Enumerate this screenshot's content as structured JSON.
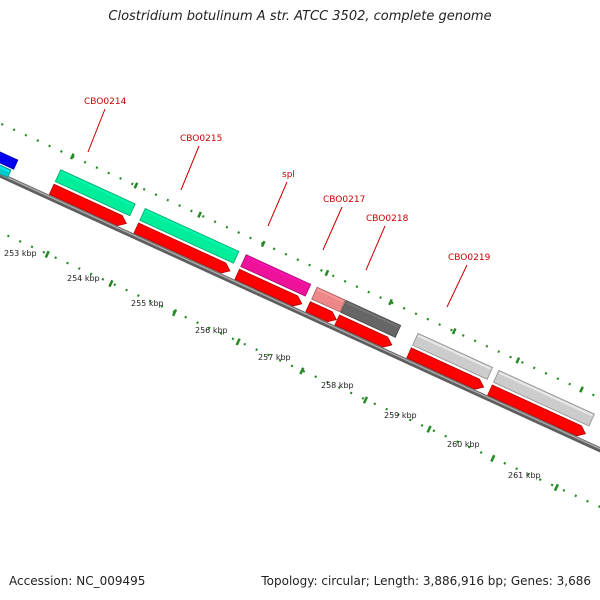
{
  "title": "Clostridium botulinum A str. ATCC 3502, complete genome",
  "footer": {
    "accession": "Accession: NC_009495",
    "topology": "Topology: circular; Length: 3,886,916 bp; Genes: 3,686"
  },
  "colors": {
    "backbone": "#808080",
    "cds": "#ff0000",
    "gene_label": "#cc0000",
    "tick": "#228b22"
  },
  "gene_labels": [
    "CBO0214",
    "CBO0215",
    "spl",
    "CBO0217",
    "CBO0218",
    "CBO0219"
  ],
  "kbp_labels": [
    "253 kbp",
    "254 kbp",
    "255 kbp",
    "256 kbp",
    "257 kbp",
    "258 kbp",
    "259 kbp",
    "260 kbp",
    "261 kbp"
  ],
  "feature_colors": [
    "#00ee99",
    "#00ee99",
    "#ee1199",
    "#ee8888",
    "#666666",
    "#cccccc",
    "#cccccc",
    "#0000ee",
    "#00cccc"
  ]
}
